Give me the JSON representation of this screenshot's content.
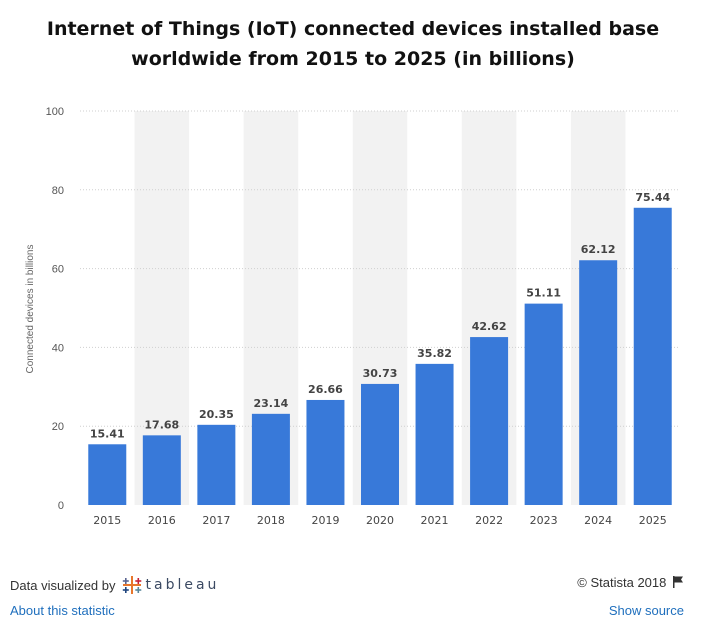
{
  "title_line1": "Internet of Things (IoT) connected devices installed base",
  "title_line2": "worldwide from 2015 to 2025 (in billions)",
  "footer": {
    "data_visualized_by": "Data visualized by",
    "tableau_word": "tableau",
    "copyright": "© Statista 2018",
    "about_link": "About this statistic",
    "show_source_link": "Show source"
  },
  "colors": {
    "bar": "#3879d9",
    "band": "#f2f2f2",
    "grid": "#cfcfcf",
    "label": "#444444"
  },
  "chart_data": {
    "type": "bar",
    "title": "Internet of Things (IoT) connected devices installed base worldwide from 2015 to 2025 (in billions)",
    "xlabel": "",
    "ylabel": "Connected devices in billions",
    "ylim": [
      0,
      100
    ],
    "yticks": [
      0,
      20,
      40,
      60,
      80,
      100
    ],
    "grid": true,
    "categories": [
      "2015",
      "2016",
      "2017",
      "2018",
      "2019",
      "2020",
      "2021",
      "2022",
      "2023",
      "2024",
      "2025"
    ],
    "values": [
      15.41,
      17.68,
      20.35,
      23.14,
      26.66,
      30.73,
      35.82,
      42.62,
      51.11,
      62.12,
      75.44
    ],
    "value_labels": [
      "15.41",
      "17.68",
      "20.35",
      "23.14",
      "26.66",
      "30.73",
      "35.82",
      "42.62",
      "51.11",
      "62.12",
      "75.44"
    ]
  }
}
